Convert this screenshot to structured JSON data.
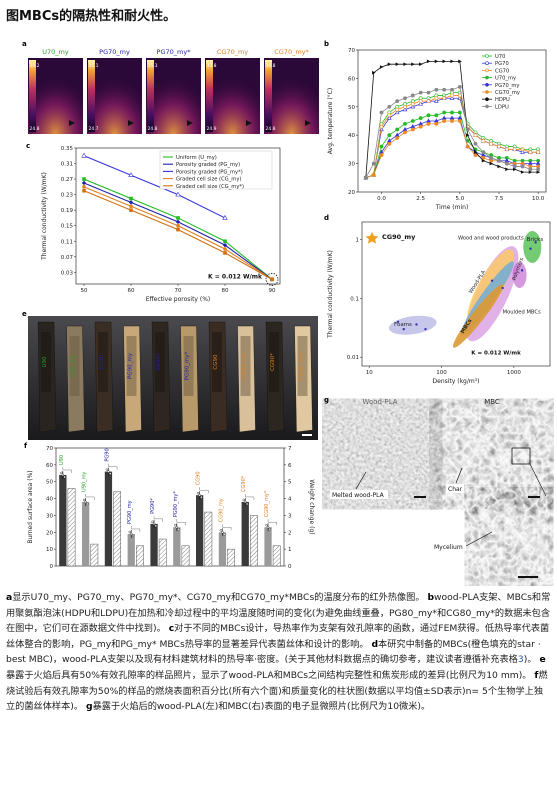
{
  "page_title": "图MBCs的隔热性和耐火性。",
  "panel_letters": {
    "a": "a",
    "b": "b",
    "c": "c",
    "d": "d",
    "e": "e",
    "f": "f",
    "g": "g"
  },
  "panel_a": {
    "labels": [
      "U70_my",
      "PG70_my",
      "PG70_my*",
      "CG70_my",
      "CG70_my*"
    ],
    "label_colors": [
      "#2aa02a",
      "#2222aa",
      "#2222aa",
      "#e08020",
      "#e08020"
    ],
    "scale_top": [
      "30.2",
      "35.1",
      "35.3",
      "33.8",
      "34.8"
    ],
    "scale_bot": [
      "24.8",
      "24.7",
      "24.8",
      "24.9",
      "24.8"
    ]
  },
  "chart_b": {
    "type": "line",
    "xlabel": "Time (min)",
    "ylabel": "Avg. temperature (°C)",
    "xlim": [
      -1.5,
      10.5
    ],
    "ylim": [
      20,
      70
    ],
    "xticks": [
      0.0,
      2.5,
      5.0,
      7.5,
      10.0
    ],
    "yticks": [
      20,
      30,
      40,
      50,
      60,
      70
    ],
    "legend": [
      "U70",
      "PG70",
      "CG70",
      "U70_my",
      "PG70_my",
      "CG70_my",
      "HDPU",
      "LDPU"
    ],
    "colors": [
      "#22bb22",
      "#3333dd",
      "#ee8822",
      "#22bb22",
      "#3333dd",
      "#ee8822",
      "#111111",
      "#888888"
    ],
    "x": [
      -1,
      -0.5,
      0,
      0.5,
      1,
      1.5,
      2,
      2.5,
      3,
      3.5,
      4,
      4.5,
      5,
      5.5,
      6,
      6.5,
      7,
      7.5,
      8,
      8.5,
      9,
      9.5,
      10
    ],
    "series": [
      {
        "name": "U70",
        "values": [
          25,
          26,
          44,
          48,
          50,
          51,
          52,
          53,
          53,
          54,
          54,
          55,
          55,
          44,
          41,
          39,
          38,
          37,
          36,
          36,
          35,
          35,
          35
        ]
      },
      {
        "name": "PG70",
        "values": [
          25,
          26,
          42,
          46,
          48,
          49,
          50,
          51,
          52,
          52,
          53,
          53,
          53,
          43,
          40,
          38,
          37,
          36,
          35,
          35,
          34,
          34,
          34
        ]
      },
      {
        "name": "CG70",
        "values": [
          25,
          26,
          43,
          47,
          49,
          50,
          51,
          52,
          52,
          53,
          53,
          54,
          54,
          43,
          40,
          38,
          37,
          36,
          35,
          35,
          35,
          34,
          34
        ]
      },
      {
        "name": "U70_my",
        "values": [
          25,
          26,
          36,
          40,
          42,
          44,
          45,
          46,
          47,
          47,
          48,
          48,
          48,
          38,
          35,
          34,
          33,
          32,
          32,
          31,
          31,
          31,
          31
        ]
      },
      {
        "name": "PG70_my",
        "values": [
          25,
          26,
          34,
          38,
          40,
          42,
          43,
          44,
          45,
          45,
          46,
          46,
          46,
          36,
          34,
          33,
          32,
          31,
          31,
          30,
          30,
          30,
          30
        ]
      },
      {
        "name": "CG70_my",
        "values": [
          25,
          26,
          33,
          37,
          39,
          41,
          42,
          43,
          44,
          44,
          45,
          45,
          45,
          36,
          33,
          32,
          31,
          31,
          30,
          30,
          30,
          29,
          29
        ]
      },
      {
        "name": "HDPU",
        "values": [
          25,
          62,
          64,
          65,
          65,
          65,
          65,
          65,
          66,
          66,
          66,
          66,
          66,
          40,
          34,
          31,
          30,
          29,
          28,
          28,
          27,
          27,
          27
        ]
      },
      {
        "name": "LDPU",
        "values": [
          25,
          30,
          48,
          50,
          52,
          53,
          54,
          55,
          55,
          56,
          56,
          56,
          57,
          42,
          37,
          34,
          32,
          31,
          30,
          29,
          29,
          28,
          28
        ]
      }
    ]
  },
  "chart_c": {
    "type": "line",
    "xlabel": "Effective porosity (%)",
    "ylabel": "Thermal conductivity (W/mK)",
    "xlim": [
      50,
      90
    ],
    "ylim": [
      0.0,
      0.35
    ],
    "xticks": [
      50,
      60,
      70,
      80,
      90
    ],
    "yticks": [
      0.03,
      0.07,
      0.11,
      0.15,
      0.19,
      0.23,
      0.27,
      0.31,
      0.35
    ],
    "annotation": "K = 0.012 W/mk",
    "legend": [
      "Uniform (U_my)",
      "Porosity graded (PG_my)",
      "Porosity graded (PG_my*)",
      "Graded cell size (CG_my)",
      "Graded cell size (CG_my*)"
    ],
    "colors": [
      "#22bb22",
      "#2222aa",
      "#3333dd",
      "#e08020",
      "#d07010"
    ],
    "series": [
      {
        "name": "Uniform (U_my)",
        "x": [
          50,
          60,
          70,
          80,
          90
        ],
        "values": [
          0.27,
          0.22,
          0.17,
          0.11,
          0.012
        ]
      },
      {
        "name": "Porosity graded (PG_my)",
        "x": [
          50,
          60,
          70,
          80,
          90
        ],
        "values": [
          0.26,
          0.21,
          0.16,
          0.1,
          0.012
        ]
      },
      {
        "name": "Porosity graded (PG_my*)",
        "x": [
          50,
          60,
          70,
          80
        ],
        "values": [
          0.33,
          0.28,
          0.23,
          0.17
        ]
      },
      {
        "name": "Graded cell size (CG_my)",
        "x": [
          50,
          60,
          70,
          80,
          90
        ],
        "values": [
          0.25,
          0.2,
          0.15,
          0.09,
          0.012
        ]
      },
      {
        "name": "Graded cell size (CG_my*)",
        "x": [
          50,
          60,
          70,
          80,
          90
        ],
        "values": [
          0.24,
          0.19,
          0.14,
          0.08,
          0.012
        ]
      }
    ]
  },
  "chart_d": {
    "type": "scatter",
    "xlabel": "Density (kg/m³)",
    "ylabel": "Thermal conductivity (W/mK)",
    "xticks": [
      "10",
      "100",
      "1000"
    ],
    "yticks": [
      "1",
      "0.1",
      "0.01"
    ],
    "legend": "CG90_my",
    "regions": [
      "Foams",
      "Wood-PLA",
      "Wood and wood products",
      "Bricks",
      "Polymers",
      "Moulded MBCs",
      "MBCs"
    ],
    "annotation": "K = 0.012 W/mk",
    "colors": {
      "foams": "#9999dd",
      "wood": "#ffcc55",
      "bricks": "#44bb44",
      "polymers": "#bb55cc",
      "mbc": "#dd9933",
      "woodpla": "#66aadd"
    }
  },
  "panel_e": {
    "labels": [
      "U90",
      "U90_my",
      "PG90",
      "PG90_my",
      "PG90*",
      "PG90_my*",
      "CG90",
      "CG90_my",
      "CG90*",
      "CG90_my*"
    ],
    "label_colors": [
      "#2aa02a",
      "#2aa02a",
      "#2222aa",
      "#2222aa",
      "#2222aa",
      "#2222aa",
      "#e08020",
      "#e08020",
      "#e08020",
      "#e08020"
    ]
  },
  "chart_f": {
    "type": "bar",
    "ylabel": "Burned surface area (%)",
    "y2label": "Weight change (g)",
    "ylim": [
      0,
      70
    ],
    "yticks": [
      0,
      10,
      20,
      30,
      40,
      50,
      60,
      70
    ],
    "y2ticks": [
      0,
      1,
      2,
      3,
      4,
      5,
      6,
      7
    ],
    "categories": [
      "U90",
      "U90_my",
      "PG90",
      "PG90_my",
      "PG90*",
      "PG90_my*",
      "CG90",
      "CG90_my",
      "CG90*",
      "CG90_my*"
    ],
    "label_colors": [
      "#2aa02a",
      "#2aa02a",
      "#2222aa",
      "#2222aa",
      "#2222aa",
      "#2222aa",
      "#e08020",
      "#e08020",
      "#e08020",
      "#e08020"
    ],
    "series": [
      {
        "name": "Burned surface area",
        "values": [
          54,
          38,
          56,
          19,
          25,
          23,
          42,
          20,
          38,
          23
        ]
      },
      {
        "name": "Weight change",
        "values": [
          4.6,
          1.3,
          4.4,
          1.2,
          1.6,
          1.2,
          3.2,
          1.0,
          3.0,
          1.2
        ]
      }
    ]
  },
  "panel_g": {
    "labels": [
      "Wood-PLA",
      "MBC"
    ],
    "annotations": [
      "Melted wood-PLA",
      "Char",
      "Mycelium"
    ]
  },
  "caption": {
    "a_text": "显示U70_my、PG70_my、PG70_my*、CG70_my和CG70_my*MBCs的温度分布的红外热像图。",
    "b_text": "wood-PLA支架、MBCs和常用聚氨酯泡沫(HDPU和LDPU)在加热和冷却过程中的平均温度随时间的变化(为避免曲线重叠，PG80_my*和CG80_my*的数据未包含在图中，它们可在源数据文件中找到)。",
    "c_text": "对于不同的MBCs设计，导热率作为支架有效孔隙率的函数，通过FEM获得。低热导率代表菌丝体整合的影响，PG_my和PG_my* MBCs热导率的显著差异代表菌丝体和设计的影响。",
    "d_text": "本研究中制备的MBCs(橙色填充的star · best MBC)，wood-PLA支架以及现有材料建筑材料的热导率·密度。(关于其他材料数据点的确切参考，建议读者遵循补充表格",
    "d_link": "3",
    "d_end": ")。",
    "e_text": "暴露于火焰后具有50%有效孔隙率的样品照片，显示了wood-PLA和MBCs之间结构完整性和焦炭形成的差异(比例尺为10 mm)。",
    "f_text": "燃烧试验后有效孔隙率为50%的样品的燃烧表面积百分比(所有六个面)和质量变化的柱状图(数据以平均值±SD表示)n= 5个生物学上独立的菌丝体样本)。",
    "g_text": "暴露于火焰后的wood-PLA(左)和MBC(右)表面的电子显微照片(比例尺为10微米)。"
  }
}
